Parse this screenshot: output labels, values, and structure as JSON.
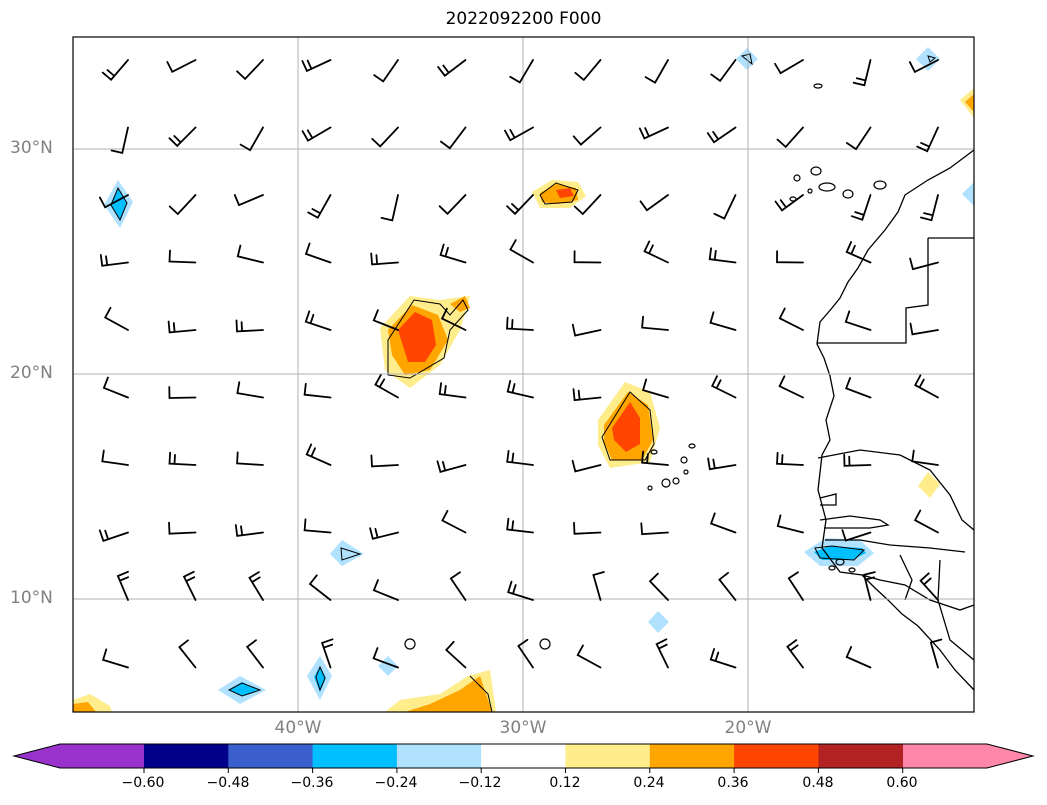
{
  "title": "2022092200 F000",
  "lat_labels": [
    "30°N",
    "20°N",
    "10°N"
  ],
  "lon_labels": [
    "40°W",
    "30°W",
    "20°W"
  ],
  "colorbar": {
    "ticks": [
      "−0.60",
      "−0.48",
      "−0.36",
      "−0.24",
      "−0.12",
      "0.12",
      "0.24",
      "0.36",
      "0.48",
      "0.60"
    ],
    "colors": [
      "#9932cc",
      "#00008b",
      "#3a5fcd",
      "#00bfff",
      "#b0e2ff",
      "#ffffff",
      "#ffec8b",
      "#ffa500",
      "#ff4500",
      "#b22222",
      "#ff88aa"
    ]
  },
  "map": {
    "lon_range": [
      -50,
      -10
    ],
    "lat_range": [
      5,
      35
    ],
    "gridlines": true,
    "overlay": "wind barbs",
    "coastline": "West Africa"
  }
}
